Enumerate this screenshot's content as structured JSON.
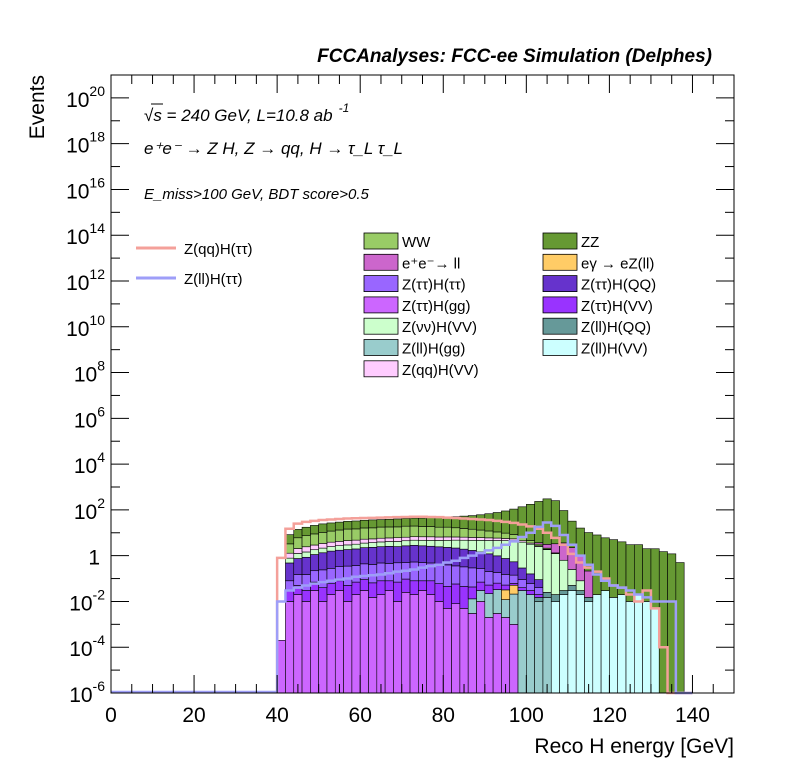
{
  "chart_data": {
    "type": "histogram",
    "title": "FCCAnalyses: FCC-ee Simulation (Delphes)",
    "xlabel": "Reco H energy [GeV]",
    "ylabel": "Events",
    "xlim": [
      0,
      150
    ],
    "ylim": [
      1e-06,
      1e+21
    ],
    "log_y": true,
    "xticks": [
      "0",
      "20",
      "40",
      "60",
      "80",
      "100",
      "120",
      "140"
    ],
    "yticks": [
      {
        "mantissa": "10",
        "exp": "-6"
      },
      {
        "mantissa": "10",
        "exp": "-4"
      },
      {
        "mantissa": "10",
        "exp": "-2"
      },
      {
        "mantissa": "1",
        "exp": ""
      },
      {
        "mantissa": "10",
        "exp": "2"
      },
      {
        "mantissa": "10",
        "exp": "4"
      },
      {
        "mantissa": "10",
        "exp": "6"
      },
      {
        "mantissa": "10",
        "exp": "8"
      },
      {
        "mantissa": "10",
        "exp": "10"
      },
      {
        "mantissa": "10",
        "exp": "12"
      },
      {
        "mantissa": "10",
        "exp": "14"
      },
      {
        "mantissa": "10",
        "exp": "16"
      },
      {
        "mantissa": "10",
        "exp": "18"
      },
      {
        "mantissa": "10",
        "exp": "20"
      }
    ],
    "annotations": {
      "energy": "√s = 240 GeV, L=10.8 ab",
      "energy_sup": "-1",
      "process": "e⁺e⁻ → Z H, Z → qq, H → τ_L τ_L",
      "cut": "E_miss>100 GeV, BDT score>0.5"
    },
    "legend_lines": [
      {
        "name": "Z(qq)H(ττ)",
        "color": "#f4a09a"
      },
      {
        "name": "Z(ll)H(ττ)",
        "color": "#9e9ef8"
      }
    ],
    "legend_stack": [
      {
        "name": "WW",
        "color": "#99cc66"
      },
      {
        "name": "ZZ",
        "color": "#669933"
      },
      {
        "name": "e⁺e⁻→ ll",
        "color": "#cc66cc"
      },
      {
        "name": "eγ → eZ(ll)",
        "color": "#ffcc66"
      },
      {
        "name": "Z(ττ)H(ττ)",
        "color": "#9966ff"
      },
      {
        "name": "Z(ττ)H(QQ)",
        "color": "#6633cc"
      },
      {
        "name": "Z(ττ)H(gg)",
        "color": "#cc66ff"
      },
      {
        "name": "Z(ττ)H(VV)",
        "color": "#9933ff"
      },
      {
        "name": "Z(νν)H(VV)",
        "color": "#ccffcc"
      },
      {
        "name": "Z(ll)H(QQ)",
        "color": "#669999"
      },
      {
        "name": "Z(ll)H(gg)",
        "color": "#99cccc"
      },
      {
        "name": "Z(ll)H(VV)",
        "color": "#ccffff"
      },
      {
        "name": "Z(qq)H(VV)",
        "color": "#ffccff"
      }
    ],
    "bin_edges_start": 40,
    "bin_width": 2,
    "stack_series": [
      {
        "name": "Z(ττ)H(gg)",
        "color": "#cc66ff",
        "values": [
          0.0002,
          0.01,
          0.02,
          0.01,
          0.03,
          0.01,
          0.02,
          0.03,
          0.01,
          0.02,
          0.03,
          0.015,
          0.02,
          0.03,
          0.01,
          0.025,
          0.02,
          0.03,
          0.02,
          0.01,
          0.005,
          0.008,
          0.005,
          0.003,
          0.01,
          0.002,
          0.003,
          0.002,
          0.001,
          0,
          0,
          0,
          0,
          0,
          0,
          0,
          0,
          0,
          0,
          0,
          0,
          0,
          0,
          0,
          0,
          0,
          0,
          0,
          0,
          0
        ]
      },
      {
        "name": "Z(ll)H(gg)",
        "color": "#99cccc",
        "values": [
          0,
          0,
          0,
          0,
          0,
          0,
          0,
          0,
          0,
          0,
          0,
          0,
          0,
          0,
          0,
          0,
          0,
          0,
          0,
          0,
          0,
          0,
          0,
          0.01,
          0.02,
          0.02,
          0.03,
          0.01,
          0.02,
          0.03,
          0.02,
          0.01,
          0.015,
          0,
          0,
          0,
          0,
          0,
          0,
          0,
          0,
          0,
          0,
          0,
          0,
          0,
          0,
          0,
          0,
          0
        ]
      },
      {
        "name": "eγ → eZ(ll)",
        "color": "#ffcc66",
        "values": [
          0,
          0,
          0,
          0,
          0,
          0,
          0,
          0,
          0,
          0,
          0,
          0,
          0,
          0,
          0,
          0,
          0,
          0,
          0,
          0,
          0,
          0,
          0,
          0,
          0,
          0,
          0,
          0.02,
          0.03,
          0,
          0,
          0,
          0,
          0,
          0,
          0,
          0,
          0,
          0,
          0,
          0,
          0,
          0,
          0,
          0,
          0,
          0,
          0,
          0,
          0
        ]
      },
      {
        "name": "Z(ll)H(VV)",
        "color": "#ccffff",
        "values": [
          0,
          0,
          0,
          0,
          0,
          0,
          0,
          0,
          0,
          0,
          0,
          0,
          0,
          0,
          0,
          0,
          0,
          0,
          0,
          0,
          0,
          0,
          0,
          0,
          0,
          0,
          0,
          0,
          0,
          0,
          0,
          0,
          0,
          0.01,
          0.02,
          0.03,
          0.02,
          0.01,
          0.02,
          0.03,
          0.015,
          0.02,
          0.01,
          0.02,
          0.01,
          0.005,
          0,
          0,
          0,
          0
        ]
      },
      {
        "name": "Z(ll)H(QQ)",
        "color": "#669999",
        "values": [
          0,
          0,
          0,
          0,
          0,
          0,
          0,
          0,
          0,
          0,
          0,
          0,
          0,
          0,
          0,
          0,
          0,
          0,
          0,
          0,
          0,
          0,
          0,
          0,
          0,
          0,
          0,
          0,
          0,
          0,
          0,
          0.005,
          0.01,
          0.01,
          0.01,
          0.02,
          0.01,
          0.005,
          0,
          0,
          0,
          0,
          0,
          0,
          0,
          0,
          0,
          0,
          0,
          0
        ]
      },
      {
        "name": "Z(ττ)H(VV)",
        "color": "#9933ff",
        "values": [
          0,
          0.02,
          0.03,
          0.02,
          0.04,
          0.03,
          0.04,
          0.05,
          0.04,
          0.05,
          0.06,
          0.05,
          0.06,
          0.05,
          0.06,
          0.07,
          0.06,
          0.05,
          0.06,
          0.05,
          0.04,
          0.05,
          0.04,
          0.03,
          0.04,
          0.03,
          0.03,
          0.02,
          0.01,
          0.01,
          0.01,
          0.005,
          0,
          0,
          0,
          0,
          0,
          0,
          0,
          0,
          0,
          0,
          0,
          0,
          0,
          0,
          0,
          0,
          0,
          0
        ]
      },
      {
        "name": "Z(ττ)H(ττ)",
        "color": "#9966ff",
        "values": [
          0,
          0.05,
          0.1,
          0.12,
          0.15,
          0.2,
          0.22,
          0.25,
          0.3,
          0.3,
          0.35,
          0.35,
          0.4,
          0.38,
          0.42,
          0.4,
          0.45,
          0.42,
          0.4,
          0.38,
          0.35,
          0.3,
          0.28,
          0.25,
          0.2,
          0.15,
          0.12,
          0.1,
          0.08,
          0.05,
          0.03,
          0.02,
          0,
          0,
          0,
          0,
          0,
          0,
          0,
          0,
          0,
          0,
          0,
          0,
          0,
          0,
          0,
          0,
          0,
          0
        ]
      },
      {
        "name": "Z(ττ)H(QQ)",
        "color": "#6633cc",
        "values": [
          0,
          0.4,
          0.6,
          0.7,
          0.9,
          1.1,
          1.3,
          1.4,
          1.5,
          1.6,
          1.8,
          1.9,
          2.0,
          2.1,
          2.0,
          2.2,
          2.3,
          2.2,
          2.1,
          2.0,
          1.9,
          1.8,
          1.6,
          1.4,
          1.2,
          1.0,
          0.8,
          0.6,
          0.4,
          0.2,
          0.1,
          0.05,
          0,
          0,
          0,
          0,
          0,
          0,
          0,
          0,
          0,
          0,
          0,
          0,
          0,
          0,
          0,
          0,
          0,
          0
        ]
      },
      {
        "name": "Z(νν)H(VV)",
        "color": "#ccffcc",
        "values": [
          0,
          0.3,
          0.5,
          0.6,
          0.7,
          0.8,
          0.9,
          1.0,
          1.1,
          1.2,
          1.3,
          1.4,
          1.5,
          1.6,
          1.7,
          1.8,
          1.9,
          2.0,
          2.1,
          2.2,
          2.4,
          2.6,
          2.8,
          3.0,
          3.2,
          3.4,
          3.6,
          3.8,
          4.0,
          3.6,
          3.0,
          2.4,
          1.8,
          1.2,
          0.6,
          0.2,
          0.05,
          0,
          0,
          0,
          0,
          0,
          0,
          0,
          0,
          0,
          0,
          0,
          0,
          0
        ]
      },
      {
        "name": "Z(qq)H(VV)",
        "color": "#ffccff",
        "values": [
          0,
          0.5,
          0.8,
          1.0,
          1.1,
          1.3,
          1.4,
          1.5,
          1.6,
          1.6,
          1.7,
          1.7,
          1.8,
          1.8,
          1.9,
          1.9,
          2.0,
          2.0,
          2.0,
          1.9,
          1.9,
          1.8,
          1.7,
          1.6,
          1.5,
          1.4,
          1.3,
          1.1,
          0.9,
          0.6,
          0.4,
          0.2,
          0.1,
          0,
          0,
          0,
          0,
          0,
          0,
          0,
          0,
          0,
          0,
          0,
          0,
          0,
          0,
          0,
          0,
          0
        ]
      },
      {
        "name": "WW",
        "color": "#99cc66",
        "values": [
          0,
          2,
          4,
          5,
          6,
          7,
          8,
          9,
          10,
          10,
          11,
          11,
          12,
          12,
          12,
          13,
          13,
          12,
          12,
          11,
          11,
          10,
          9,
          8,
          7,
          6,
          5,
          4,
          3,
          2,
          1,
          0.5,
          0.2,
          0.1,
          0,
          0,
          0,
          0,
          0,
          0,
          0,
          0,
          0,
          0,
          0,
          0,
          0,
          0,
          0,
          0
        ]
      },
      {
        "name": "e⁺e⁻→ ll",
        "color": "#cc66cc",
        "values": [
          0,
          0,
          0,
          0,
          0,
          0,
          0,
          0,
          0,
          0,
          0,
          0,
          0,
          0,
          0,
          0,
          0,
          0,
          0,
          0,
          0,
          0,
          0,
          0,
          0,
          0,
          0,
          0,
          0,
          0,
          0,
          0.5,
          1,
          2,
          3,
          2,
          1,
          0.2,
          0,
          0,
          0,
          0,
          0,
          0,
          0,
          0,
          0,
          0,
          0,
          0
        ]
      },
      {
        "name": "ZZ",
        "color": "#669933",
        "values": [
          0,
          5,
          8,
          10,
          12,
          14,
          15,
          16,
          17,
          18,
          19,
          20,
          20,
          21,
          22,
          23,
          24,
          25,
          27,
          29,
          31,
          34,
          38,
          42,
          48,
          56,
          66,
          80,
          100,
          130,
          170,
          230,
          300,
          250,
          90,
          30,
          15,
          10,
          8,
          6,
          5,
          4,
          3,
          3,
          2,
          2,
          1.5,
          1.2,
          0.5,
          0
        ]
      }
    ],
    "line_series": [
      {
        "name": "Z(qq)H(ττ)",
        "color": "#f4a09a",
        "values": [
          0.8,
          15,
          25,
          30,
          33,
          36,
          38,
          40,
          42,
          43,
          44,
          45,
          46,
          47,
          48,
          49,
          50,
          50,
          49,
          48,
          46,
          44,
          42,
          40,
          38,
          36,
          33,
          30,
          27,
          23,
          19,
          15,
          10,
          6,
          3,
          1.2,
          0.5,
          0.3,
          0.2,
          0.1,
          0.05,
          0.04,
          0.02,
          0.01,
          0.03,
          0.005,
          0.0001,
          0,
          0,
          0
        ]
      },
      {
        "name": "Z(ll)H(ττ)",
        "color": "#9e9ef8",
        "values": [
          0.01,
          0.03,
          0.04,
          0.05,
          0.06,
          0.07,
          0.08,
          0.09,
          0.1,
          0.12,
          0.13,
          0.14,
          0.15,
          0.17,
          0.2,
          0.22,
          0.25,
          0.3,
          0.35,
          0.4,
          0.5,
          0.6,
          0.8,
          1.0,
          1.3,
          1.7,
          2.2,
          3.0,
          4.2,
          6.5,
          10,
          18,
          28,
          20,
          8,
          3,
          1,
          0.4,
          0.15,
          0.08,
          0.05,
          0.04,
          0.03,
          0.02,
          0.015,
          0.01,
          0.01,
          0.01,
          0,
          0
        ]
      }
    ]
  }
}
